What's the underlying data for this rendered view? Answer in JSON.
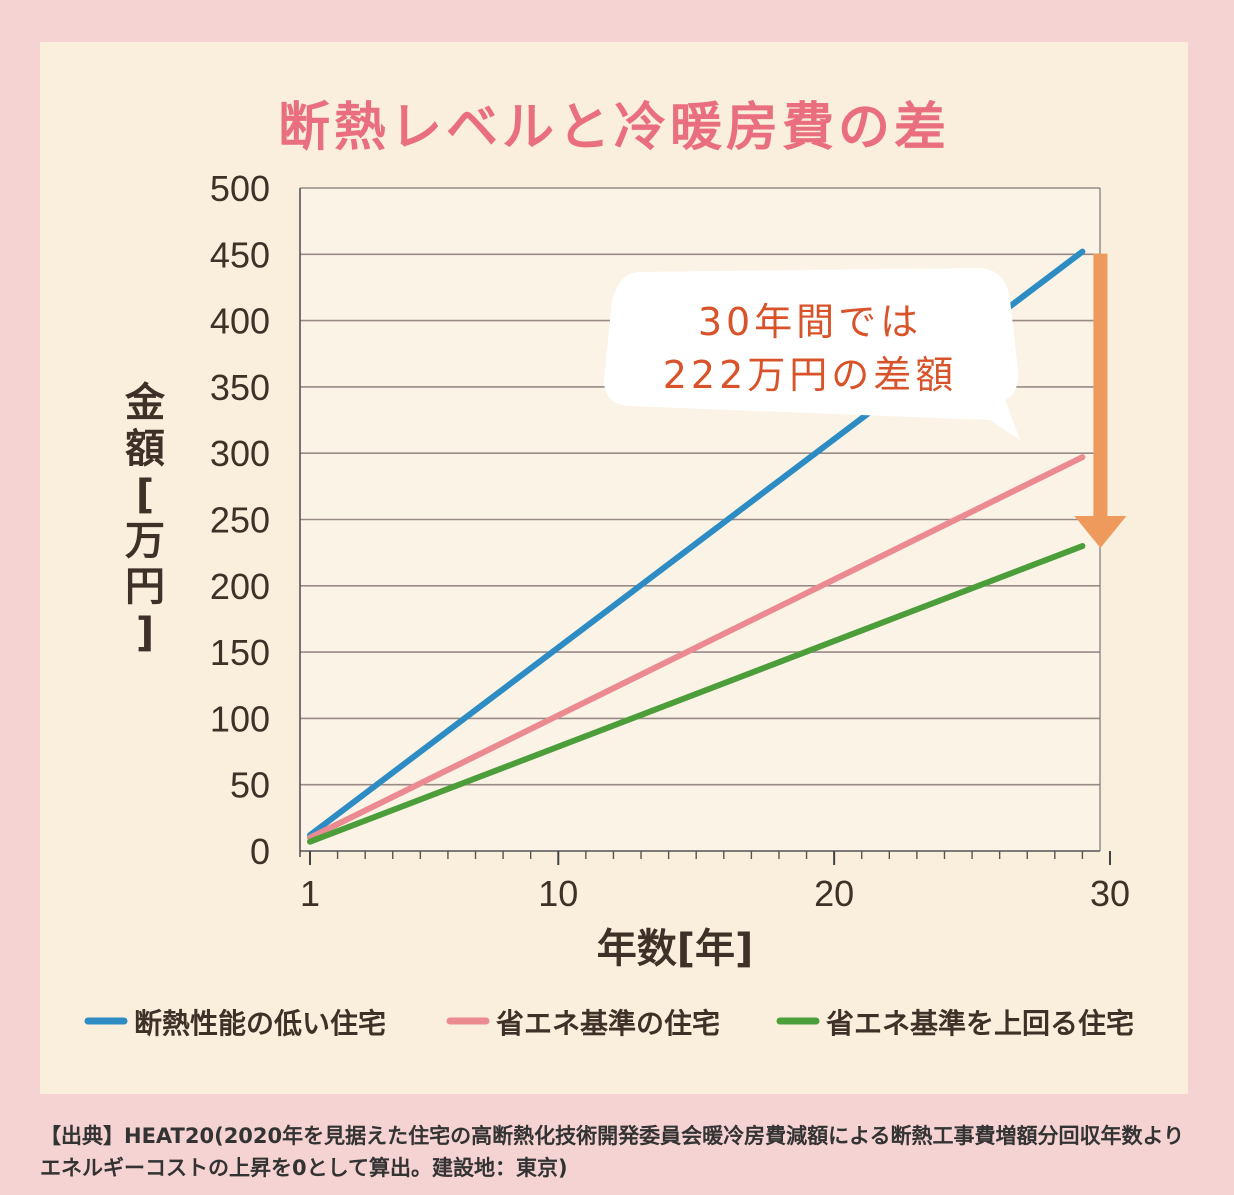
{
  "chart_data": {
    "type": "line",
    "title": "断熱レベルと冷暖房費の差",
    "xlabel": "年数[年]",
    "ylabel": "金額[万円]",
    "xlim": [
      1,
      30
    ],
    "ylim": [
      0,
      500
    ],
    "x_ticks": [
      1,
      10,
      20,
      30
    ],
    "y_ticks": [
      0,
      50,
      100,
      150,
      200,
      250,
      300,
      350,
      400,
      450,
      500
    ],
    "grid": true,
    "legend_position": "bottom",
    "series": [
      {
        "name": "断熱性能の低い住宅",
        "color": "#2d8cc4",
        "x": [
          1,
          29
        ],
        "y": [
          12,
          452
        ]
      },
      {
        "name": "省エネ基準の住宅",
        "color": "#ec8a92",
        "x": [
          1,
          29
        ],
        "y": [
          10,
          297
        ]
      },
      {
        "name": "省エネ基準を上回る住宅",
        "color": "#4c9e3a",
        "x": [
          1,
          29
        ],
        "y": [
          7,
          230
        ]
      }
    ],
    "annotation": {
      "line1": "30年間では",
      "line2": "222万円の差額",
      "arrow_x": 29,
      "arrow_from": 452,
      "arrow_to": 230,
      "arrow_color": "#ee9a5c",
      "text_color": "#d9532a"
    }
  },
  "source": {
    "tag": "【出典】",
    "text": "HEAT20(2020年を見据えた住宅の高断熱化技術開発委員会暖冷房費減額による断熱工事費増額分回収年数よりエネルギーコストの上昇を0として算出。建設地：東京)"
  }
}
